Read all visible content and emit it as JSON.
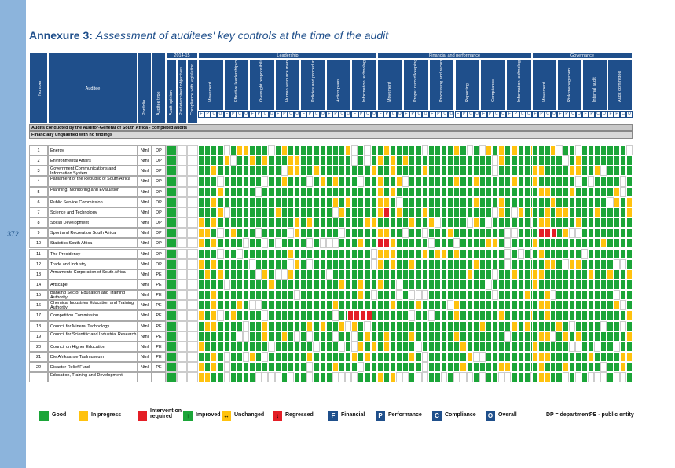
{
  "page_number": "372",
  "title": {
    "prefix": "Annexure 3:",
    "text": "Assessment of auditees' key controls at the time of the audit"
  },
  "header": {
    "number": "Number",
    "auditee": "Auditee",
    "portfolio": "Portfolio",
    "auditee_type": "Auditee type",
    "year_group": "2014-15",
    "year_cols": [
      "Audit opinion",
      "Predetermined objectives",
      "Compliance with legislation"
    ],
    "groups": [
      {
        "label": "Leadership",
        "cols": [
          "Movement",
          "Effective leadership culture",
          "Oversight responsibility",
          "Human resource management",
          "Policies and procedures",
          "Action plans",
          "Information technology governance"
        ]
      },
      {
        "label": "Financial and performance",
        "cols": [
          "Movement",
          "Proper record keeping",
          "Processing and reconciling controls",
          "Reporting",
          "Compliance",
          "Information technology system controls"
        ]
      },
      {
        "label": "Governance",
        "cols": [
          "Movement",
          "Risk management",
          "Internal audit",
          "Audit committee"
        ]
      }
    ],
    "fpco": [
      "F",
      "P",
      "C",
      "O"
    ]
  },
  "sections": {
    "main": "Audits conducted by the Auditor-General of South Africa - completed audits",
    "sub": "Financially unqualified with no findings"
  },
  "rows": [
    {
      "num": "1",
      "name": "Energy",
      "portfolio": "Ntnl",
      "type": "DP"
    },
    {
      "num": "2",
      "name": "Environmental Affairs",
      "portfolio": "Ntnl",
      "type": "DP"
    },
    {
      "num": "3",
      "name": "Government Communications and Information System",
      "portfolio": "Ntnl",
      "type": "DP"
    },
    {
      "num": "4",
      "name": "Parliament of the Republic of South Africa",
      "portfolio": "Ntnl",
      "type": "DP"
    },
    {
      "num": "5",
      "name": "Planning, Monitoring and Evaluation",
      "portfolio": "Ntnl",
      "type": "DP"
    },
    {
      "num": "6",
      "name": "Public Service Commission",
      "portfolio": "Ntnl",
      "type": "DP"
    },
    {
      "num": "7",
      "name": "Science and Technology",
      "portfolio": "Ntnl",
      "type": "DP"
    },
    {
      "num": "8",
      "name": "Social Development",
      "portfolio": "Ntnl",
      "type": "DP"
    },
    {
      "num": "9",
      "name": "Sport and Recreation South Africa",
      "portfolio": "Ntnl",
      "type": "DP"
    },
    {
      "num": "10",
      "name": "Statistics South Africa",
      "portfolio": "Ntnl",
      "type": "DP"
    },
    {
      "num": "11",
      "name": "The Presidency",
      "portfolio": "Ntnl",
      "type": "DP"
    },
    {
      "num": "12",
      "name": "Trade and Industry",
      "portfolio": "Ntnl",
      "type": "DP"
    },
    {
      "num": "13",
      "name": "Armaments Corporation of South Africa",
      "portfolio": "Ntnl",
      "type": "PE"
    },
    {
      "num": "14",
      "name": "Artscape",
      "portfolio": "Ntnl",
      "type": "PE"
    },
    {
      "num": "15",
      "name": "Banking Sector Education and Training Authority",
      "portfolio": "Ntnl",
      "type": "PE"
    },
    {
      "num": "16",
      "name": "Chemical Industries Education and Training Authority",
      "portfolio": "Ntnl",
      "type": "PE"
    },
    {
      "num": "17",
      "name": "Competition Commission",
      "portfolio": "Ntnl",
      "type": "PE"
    },
    {
      "num": "18",
      "name": "Council for Mineral Technology",
      "portfolio": "Ntnl",
      "type": "PE"
    },
    {
      "num": "19",
      "name": "Council for Scientific and Industrial Research",
      "portfolio": "Ntnl",
      "type": "PE"
    },
    {
      "num": "20",
      "name": "Council on Higher Education",
      "portfolio": "Ntnl",
      "type": "PE"
    },
    {
      "num": "21",
      "name": "Die Afrikaanse Taalmuseum",
      "portfolio": "Ntnl",
      "type": "PE"
    },
    {
      "num": "22",
      "name": "Disaster Relief Fund",
      "portfolio": "Ntnl",
      "type": "PE"
    },
    {
      "num": "",
      "name": "Education, Training and Development",
      "portfolio": "",
      "type": ""
    }
  ],
  "legend": [
    {
      "kind": "box",
      "color": "#1ba538",
      "symbol": "",
      "label": "Good"
    },
    {
      "kind": "box",
      "color": "#ffc20e",
      "symbol": "",
      "label": "In progress"
    },
    {
      "kind": "box",
      "color": "#e41e26",
      "symbol": "",
      "label": "Intervention required"
    },
    {
      "kind": "box",
      "color": "#1ba538",
      "symbol": "↑",
      "label": "Improved"
    },
    {
      "kind": "box",
      "color": "#ffc20e",
      "symbol": "↔",
      "label": "Unchanged"
    },
    {
      "kind": "box",
      "color": "#e41e26",
      "symbol": "↓",
      "label": "Regressed"
    },
    {
      "kind": "box",
      "color": "#1f4f8b",
      "symbol": "F",
      "label": "Financial"
    },
    {
      "kind": "box",
      "color": "#1f4f8b",
      "symbol": "P",
      "label": "Performance"
    },
    {
      "kind": "box",
      "color": "#1f4f8b",
      "symbol": "C",
      "label": "Compliance"
    },
    {
      "kind": "box",
      "color": "#1f4f8b",
      "symbol": "O",
      "label": "Overall"
    },
    {
      "kind": "text",
      "color": "",
      "symbol": "",
      "label": "DP = department"
    },
    {
      "kind": "text",
      "color": "",
      "symbol": "",
      "label": "PE - public entity"
    }
  ],
  "colors": {
    "good": "#1ba538",
    "progress": "#ffc20e",
    "intervention": "#e41e26",
    "navy": "#1f4f8b",
    "blank": "#ffffff"
  }
}
